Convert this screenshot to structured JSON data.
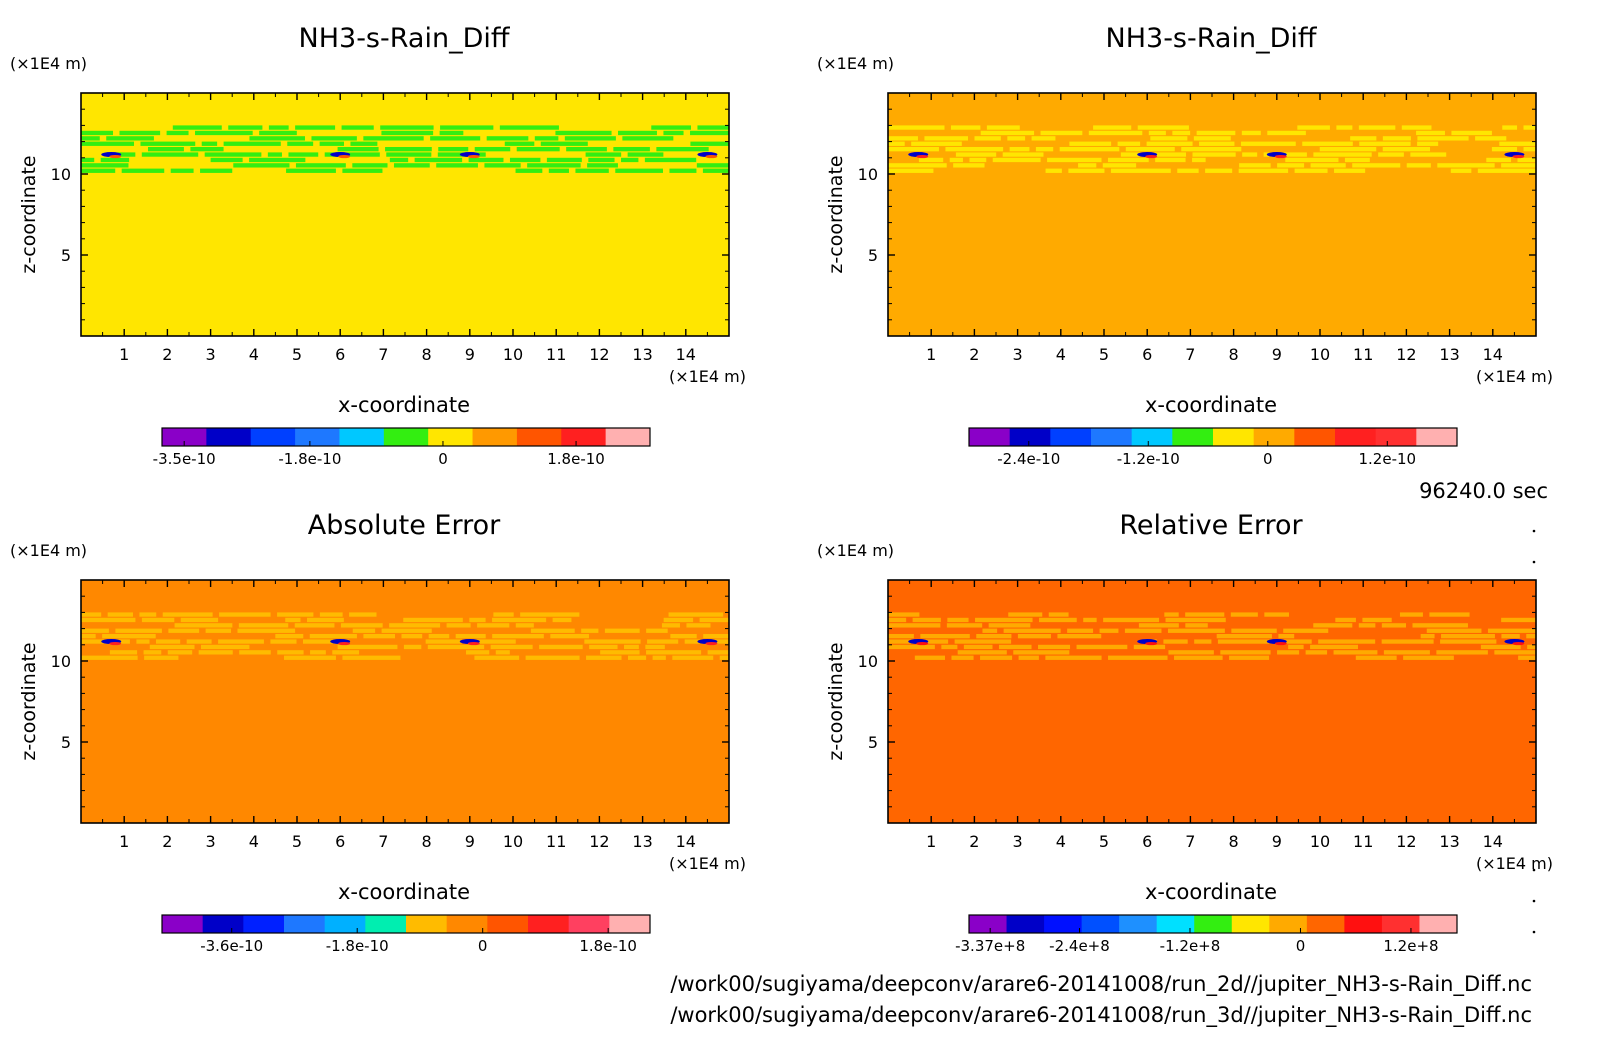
{
  "time_label": "96240.0 sec",
  "file_paths": [
    "/work00/sugiyama/deepconv/arare6-20141008/run_2d//jupiter_NH3-s-Rain_Diff.nc",
    "/work00/sugiyama/deepconv/arare6-20141008/run_3d//jupiter_NH3-s-Rain_Diff.nc"
  ],
  "chart_data": [
    {
      "type": "heatmap",
      "title": "NH3-s-Rain_Diff",
      "xlabel": "x-coordinate",
      "ylabel": "z-coordinate",
      "x_unit": "(×1E4 m)",
      "y_unit": "(×1E4 m)",
      "xlim": [
        0,
        15
      ],
      "ylim": [
        0,
        15
      ],
      "x_ticks": [
        1,
        2,
        3,
        4,
        5,
        6,
        7,
        8,
        9,
        10,
        11,
        12,
        13,
        14
      ],
      "y_ticks": [
        5,
        10
      ],
      "background_color": "#ffe600",
      "band_color": "#33ee11",
      "band_z_range": [
        10,
        13
      ],
      "colorbar": {
        "colors": [
          "#8a00c8",
          "#0000c8",
          "#0040ff",
          "#1e78ff",
          "#00c8ff",
          "#33ee11",
          "#ffe600",
          "#ff9900",
          "#ff5500",
          "#ff2020",
          "#ffb0b0"
        ],
        "tick_labels": [
          "-3.5e-10",
          "-1.8e-10",
          "0",
          "1.8e-10"
        ],
        "tick_values": [
          -3.5e-10,
          -1.8e-10,
          0,
          1.8e-10
        ],
        "range": [
          -3.8e-10,
          2.8e-10
        ]
      }
    },
    {
      "type": "heatmap",
      "title": "NH3-s-Rain_Diff",
      "xlabel": "x-coordinate",
      "ylabel": "z-coordinate",
      "x_unit": "(×1E4 m)",
      "y_unit": "(×1E4 m)",
      "xlim": [
        0,
        15
      ],
      "ylim": [
        0,
        15
      ],
      "x_ticks": [
        1,
        2,
        3,
        4,
        5,
        6,
        7,
        8,
        9,
        10,
        11,
        12,
        13,
        14
      ],
      "y_ticks": [
        5,
        10
      ],
      "background_color": "#ffaa00",
      "band_color": "#ffe600",
      "band_z_range": [
        10,
        13
      ],
      "colorbar": {
        "colors": [
          "#8a00c8",
          "#0000c8",
          "#0040ff",
          "#1e78ff",
          "#00c8ff",
          "#33ee11",
          "#ffe600",
          "#ffaa00",
          "#ff5500",
          "#ff2020",
          "#ff3030",
          "#ffb0b0"
        ],
        "tick_labels": [
          "-2.4e-10",
          "-1.2e-10",
          "0",
          "1.2e-10"
        ],
        "tick_values": [
          -2.4e-10,
          -1.2e-10,
          0,
          1.2e-10
        ],
        "range": [
          -3e-10,
          1.9e-10
        ]
      }
    },
    {
      "type": "heatmap",
      "title": "Absolute Error",
      "xlabel": "x-coordinate",
      "ylabel": "z-coordinate",
      "x_unit": "(×1E4 m)",
      "y_unit": "(×1E4 m)",
      "xlim": [
        0,
        15
      ],
      "ylim": [
        0,
        15
      ],
      "x_ticks": [
        1,
        2,
        3,
        4,
        5,
        6,
        7,
        8,
        9,
        10,
        11,
        12,
        13,
        14
      ],
      "y_ticks": [
        5,
        10
      ],
      "background_color": "#ff8800",
      "band_color": "#ffbb00",
      "band_z_range": [
        10,
        13
      ],
      "colorbar": {
        "colors": [
          "#8a00c8",
          "#0000c8",
          "#0020ff",
          "#1e78ff",
          "#00b0ff",
          "#00eeb0",
          "#ffbb00",
          "#ff8800",
          "#ff5500",
          "#ff2020",
          "#ff4060",
          "#ffb0b0"
        ],
        "tick_labels": [
          "-3.6e-10",
          "-1.8e-10",
          "0",
          "1.8e-10"
        ],
        "tick_values": [
          -3.6e-10,
          -1.8e-10,
          0,
          1.8e-10
        ],
        "range": [
          -4.6e-10,
          2.4e-10
        ]
      }
    },
    {
      "type": "heatmap",
      "title": "Relative Error",
      "xlabel": "x-coordinate",
      "ylabel": "z-coordinate",
      "x_unit": "(×1E4 m)",
      "y_unit": "(×1E4 m)",
      "xlim": [
        0,
        15
      ],
      "ylim": [
        0,
        15
      ],
      "x_ticks": [
        1,
        2,
        3,
        4,
        5,
        6,
        7,
        8,
        9,
        10,
        11,
        12,
        13,
        14
      ],
      "y_ticks": [
        5,
        10
      ],
      "background_color": "#ff6600",
      "band_color": "#ffaa00",
      "band_z_range": [
        10,
        13
      ],
      "colorbar": {
        "colors": [
          "#8a00c8",
          "#0000c8",
          "#0010ff",
          "#0050ff",
          "#1e90ff",
          "#00e0ff",
          "#33ee11",
          "#ffe600",
          "#ffaa00",
          "#ff6600",
          "#ff1010",
          "#ff3030",
          "#ffb0b0"
        ],
        "tick_labels": [
          "-3.37e+8",
          "-2.4e+8",
          "-1.2e+8",
          "0",
          "1.2e+8"
        ],
        "tick_values": [
          -337000000.0,
          -240000000.0,
          -120000000.0,
          0,
          120000000.0
        ],
        "range": [
          -360000000.0,
          170000000.0
        ]
      }
    }
  ]
}
